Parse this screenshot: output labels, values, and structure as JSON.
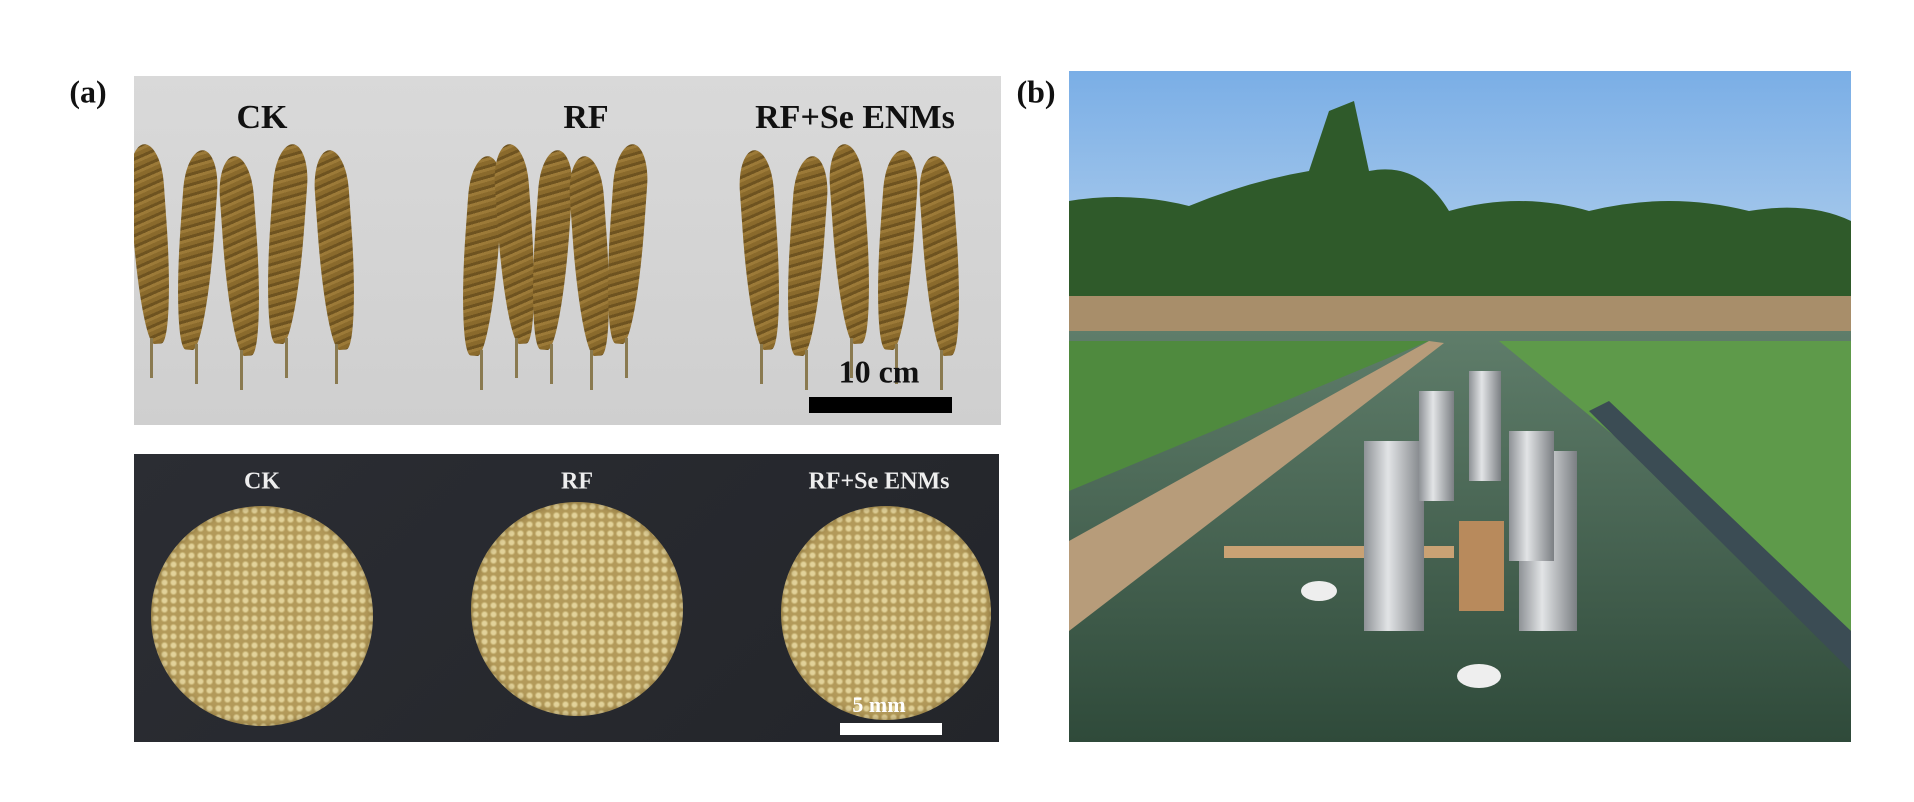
{
  "panel_a": {
    "label": "(a)",
    "top_photo": {
      "groups": [
        "CK",
        "RF",
        "RF+Se ENMs"
      ],
      "scale_bar": "10 cm"
    },
    "bottom_photo": {
      "groups": [
        "CK",
        "RF",
        "RF+Se ENMs"
      ],
      "scale_bar": "5 mm"
    }
  },
  "panel_b": {
    "label": "(b)"
  }
}
